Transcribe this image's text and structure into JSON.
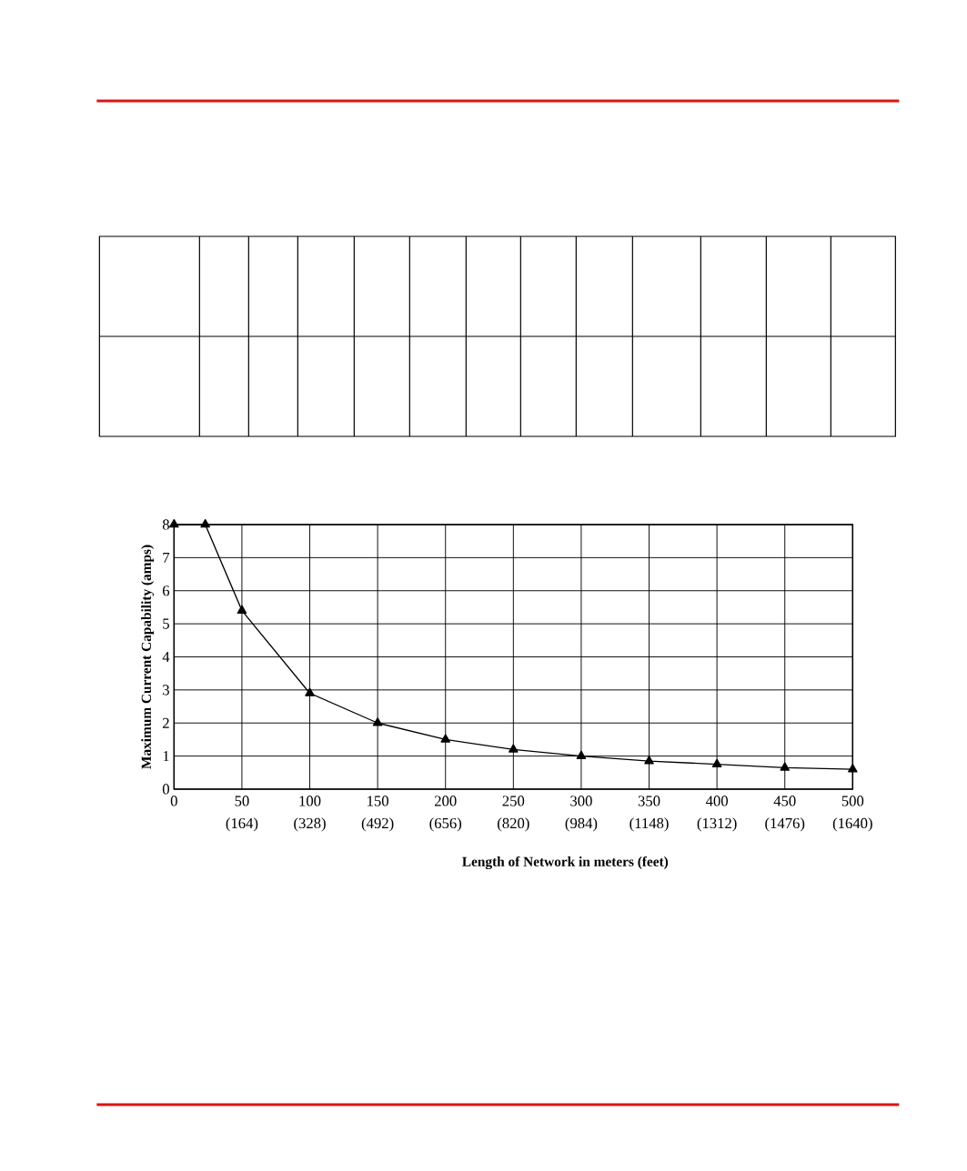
{
  "chart_data": {
    "type": "line",
    "xlabel": "Length of Network in meters (feet)",
    "ylabel": "Maximum Current Capability (amps)",
    "x": [
      0,
      23,
      50,
      100,
      150,
      200,
      250,
      300,
      350,
      400,
      450,
      500
    ],
    "values": [
      8,
      8,
      5.4,
      2.9,
      2.0,
      1.5,
      1.2,
      1.0,
      0.85,
      0.75,
      0.65,
      0.6
    ],
    "color": "#000000",
    "xlim": [
      0,
      500
    ],
    "ylim": [
      0,
      8
    ],
    "xticks": [
      0,
      50,
      100,
      150,
      200,
      250,
      300,
      350,
      400,
      450,
      500
    ],
    "yticks": [
      0,
      1,
      2,
      3,
      4,
      5,
      6,
      7,
      8
    ],
    "x2lim": [
      0,
      1640
    ],
    "x2ticks": [
      {
        "value": 164,
        "label": "(164)"
      },
      {
        "value": 328,
        "label": "(328)"
      },
      {
        "value": 492,
        "label": "(492)"
      },
      {
        "value": 656,
        "label": "(656)"
      },
      {
        "value": 820,
        "label": "(820)"
      },
      {
        "value": 984,
        "label": "(984)"
      },
      {
        "value": 1148,
        "label": "(1148)"
      },
      {
        "value": 1312,
        "label": "(1312)"
      },
      {
        "value": 1476,
        "label": "(1476)"
      },
      {
        "value": 1640,
        "label": "(1640)"
      }
    ],
    "grid": true,
    "marker": "triangle",
    "line_style": "solid"
  }
}
